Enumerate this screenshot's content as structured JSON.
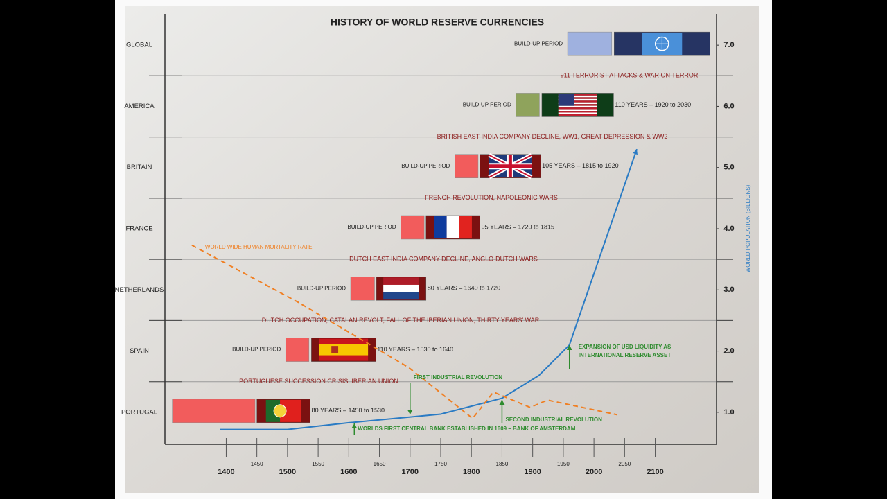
{
  "chart_data": {
    "type": "timeline",
    "title": "HISTORY OF WORLD RESERVE CURRENCIES",
    "y_axis_label": "WORLD POPULATION (BILLIONS)",
    "xlim": [
      1300,
      2200
    ],
    "xticks": [
      1400,
      1500,
      1600,
      1700,
      1800,
      1900,
      2000,
      2100
    ],
    "minor_xticks": [
      1450,
      1550,
      1650,
      1750,
      1850,
      1950,
      2050
    ],
    "ylim": [
      0.5,
      7.5
    ],
    "yticks": [
      {
        "value": 1,
        "label": "1.0"
      },
      {
        "value": 2,
        "label": "2.0"
      },
      {
        "value": 3,
        "label": "3.0"
      },
      {
        "value": 4,
        "label": "4.0"
      },
      {
        "value": 5,
        "label": "5.0"
      },
      {
        "value": 6,
        "label": "6.0"
      },
      {
        "value": 7,
        "label": "7.0"
      }
    ],
    "series": [
      {
        "color": "#2a7bc4",
        "x": [
          1390,
          1500,
          1600,
          1750,
          1850,
          1910,
          1960,
          2070
        ],
        "values": [
          0.72,
          0.72,
          0.83,
          0.97,
          1.23,
          1.6,
          2.1,
          5.3
        ]
      },
      {
        "name": "WORLD WIDE HUMAN MORTALITY RATE",
        "color": "#f07f22",
        "x": [
          1344,
          1517,
          1698,
          1802,
          1836,
          1896,
          1924,
          2038
        ],
        "values": [
          3.73,
          2.8,
          1.73,
          0.9,
          1.33,
          1.08,
          1.2,
          0.96
        ]
      }
    ],
    "rows": [
      {
        "name": "PORTUGAL",
        "y": 1,
        "buildup": [
          1312,
          1447
        ],
        "reserve": [
          1450,
          1537
        ],
        "period_label": "80 YEARS – 1450 to 1530"
      },
      {
        "name": "SPAIN",
        "y": 2,
        "buildup": [
          1497,
          1535
        ],
        "reserve": [
          1539,
          1644
        ],
        "buildup_text": "BUILD-UP PERIOD",
        "period_label": "110 YEARS – 1530 to 1640"
      },
      {
        "name": "NETHERLANDS",
        "y": 3,
        "buildup": [
          1603,
          1642
        ],
        "reserve": [
          1645,
          1726
        ],
        "buildup_text": "BUILD-UP PERIOD",
        "period_label": "80 YEARS – 1640 to 1720"
      },
      {
        "name": "FRANCE",
        "y": 4,
        "buildup": [
          1685,
          1723
        ],
        "reserve": [
          1726,
          1814
        ],
        "buildup_text": "BUILD-UP PERIOD",
        "period_label": "95 YEARS – 1720 to 1815"
      },
      {
        "name": "BRITAIN",
        "y": 5,
        "buildup": [
          1773,
          1811
        ],
        "reserve": [
          1814,
          1913
        ],
        "buildup_text": "BUILD-UP PERIOD",
        "period_label": "105 YEARS – 1815 to 1920"
      },
      {
        "name": "AMERICA",
        "y": 6,
        "buildup": [
          1873,
          1911
        ],
        "reserve": [
          1915,
          2032
        ],
        "buildup_text": "BUILD-UP PERIOD",
        "period_label": "110 YEARS – 1920 to 2030"
      },
      {
        "name": "GLOBAL",
        "y": 7,
        "buildup": [
          1957,
          2029
        ],
        "reserve": [
          2033,
          2189
        ],
        "buildup_text": "BUILD-UP PERIOD"
      }
    ],
    "events": [
      {
        "y": 1.5,
        "text": "PORTUGUESE SUCCESSION CRISIS, IBERIAN UNION"
      },
      {
        "y": 2.5,
        "text": "DUTCH OCCUPATION, CATALAN REVOLT, FALL OF THE IBERIAN UNION, THIRTY YEARS’ WAR"
      },
      {
        "y": 3.5,
        "text": "DUTCH EAST INDIA COMPANY DECLINE, ANGLO-DUTCH WARS"
      },
      {
        "y": 4.5,
        "text": "FRENCH REVOLUTION, NAPOLEONIC WARS"
      },
      {
        "y": 5.5,
        "text": "BRITISH EAST INDIA COMPANY DECLINE, WW1, GREAT DEPRESSION & WW2"
      },
      {
        "y": 6.5,
        "text": "911 TERRORIST ATTACKS & WAR ON TERROR"
      }
    ],
    "annotations": [
      {
        "x": 1700,
        "text": [
          "FIRST INDUSTRIAL REVOLUTION"
        ]
      },
      {
        "x": 1850,
        "text": [
          "SECOND INDUSTRIAL REVOLUTION"
        ]
      },
      {
        "x": 1609,
        "text": [
          "WORLDS FIRST CENTRAL BANK ESTABLISHED IN 1609 – BANK OF AMSTERDAM"
        ]
      },
      {
        "x": 1960,
        "text": [
          "EXPANSION OF USD LIQUIDITY AS",
          "INTERNATIONAL RESERVE ASSET"
        ]
      }
    ]
  }
}
